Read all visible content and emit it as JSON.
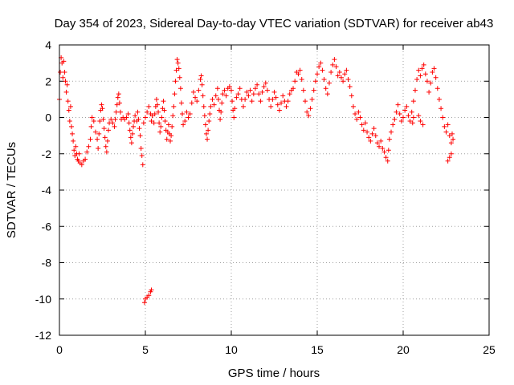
{
  "chart_data": {
    "type": "scatter",
    "title": "Day 354 of 2023, Sidereal Day-to-day VTEC variation (SDTVAR) for receiver ab43",
    "xlabel": "GPS time / hours",
    "ylabel": "SDTVAR / TECUs",
    "xlim": [
      0,
      25
    ],
    "ylim": [
      -12,
      4
    ],
    "xticks": [
      0,
      5,
      10,
      15,
      20,
      25
    ],
    "yticks": [
      4,
      2,
      0,
      -2,
      -4,
      -6,
      -8,
      -10,
      -12
    ],
    "xtick_labels": [
      "0",
      "5",
      "10",
      "15",
      "20",
      "25"
    ],
    "ytick_labels": [
      "4",
      "2",
      "0",
      "-2",
      "-4",
      "-6",
      "-8",
      "-10",
      "-12"
    ],
    "grid": true,
    "marker": "+",
    "series": [
      {
        "name": "SDTVAR",
        "color": "#ff0000",
        "points": [
          [
            0.0,
            1.0
          ],
          [
            0.05,
            2.5
          ],
          [
            0.1,
            3.3
          ],
          [
            0.15,
            3.0
          ],
          [
            0.2,
            2.2
          ],
          [
            0.25,
            3.1
          ],
          [
            0.3,
            2.5
          ],
          [
            0.35,
            2.0
          ],
          [
            0.4,
            1.4
          ],
          [
            0.45,
            1.8
          ],
          [
            0.5,
            0.9
          ],
          [
            0.55,
            0.4
          ],
          [
            0.6,
            -0.2
          ],
          [
            0.65,
            0.6
          ],
          [
            0.7,
            -0.5
          ],
          [
            0.75,
            -0.9
          ],
          [
            0.8,
            -1.3
          ],
          [
            0.85,
            -1.8
          ],
          [
            0.9,
            -2.1
          ],
          [
            0.95,
            -1.6
          ],
          [
            1.0,
            -2.0
          ],
          [
            1.05,
            -2.3
          ],
          [
            1.1,
            -2.4
          ],
          [
            1.15,
            -2.0
          ],
          [
            1.2,
            -2.5
          ],
          [
            1.3,
            -2.6
          ],
          [
            1.4,
            -2.4
          ],
          [
            1.5,
            -2.3
          ],
          [
            1.6,
            -1.9
          ],
          [
            1.7,
            -1.6
          ],
          [
            1.8,
            -1.2
          ],
          [
            1.85,
            -0.5
          ],
          [
            1.9,
            0.0
          ],
          [
            2.0,
            -0.2
          ],
          [
            2.1,
            -0.8
          ],
          [
            2.2,
            -1.2
          ],
          [
            2.25,
            -1.7
          ],
          [
            2.3,
            -0.9
          ],
          [
            2.35,
            -0.2
          ],
          [
            2.4,
            0.4
          ],
          [
            2.45,
            0.7
          ],
          [
            2.5,
            0.5
          ],
          [
            2.55,
            -0.1
          ],
          [
            2.6,
            -0.6
          ],
          [
            2.65,
            -1.1
          ],
          [
            2.7,
            -1.6
          ],
          [
            2.75,
            -1.9
          ],
          [
            2.8,
            -1.3
          ],
          [
            2.85,
            -0.7
          ],
          [
            2.9,
            -0.3
          ],
          [
            3.0,
            -0.1
          ],
          [
            3.1,
            -0.3
          ],
          [
            3.2,
            -0.5
          ],
          [
            3.25,
            -0.1
          ],
          [
            3.3,
            0.3
          ],
          [
            3.35,
            0.7
          ],
          [
            3.4,
            1.1
          ],
          [
            3.45,
            1.3
          ],
          [
            3.5,
            0.8
          ],
          [
            3.55,
            0.3
          ],
          [
            3.6,
            -0.1
          ],
          [
            3.7,
            0.0
          ],
          [
            3.8,
            -0.1
          ],
          [
            3.9,
            0.0
          ],
          [
            4.0,
            0.2
          ],
          [
            4.05,
            -0.3
          ],
          [
            4.1,
            -0.7
          ],
          [
            4.15,
            -1.1
          ],
          [
            4.2,
            -1.4
          ],
          [
            4.25,
            -0.9
          ],
          [
            4.3,
            -0.5
          ],
          [
            4.35,
            -0.2
          ],
          [
            4.4,
            0.1
          ],
          [
            4.5,
            -0.2
          ],
          [
            4.55,
            0.3
          ],
          [
            4.6,
            -0.1
          ],
          [
            4.65,
            -0.6
          ],
          [
            4.7,
            -1.0
          ],
          [
            4.75,
            -1.7
          ],
          [
            4.8,
            -2.1
          ],
          [
            4.85,
            -2.6
          ],
          [
            4.9,
            -0.3
          ],
          [
            5.0,
            0.0
          ],
          [
            5.1,
            0.3
          ],
          [
            5.2,
            0.6
          ],
          [
            5.3,
            0.2
          ],
          [
            5.35,
            -0.2
          ],
          [
            5.4,
            0.1
          ],
          [
            5.5,
            -0.3
          ],
          [
            5.55,
            0.2
          ],
          [
            5.6,
            0.6
          ],
          [
            5.65,
            1.0
          ],
          [
            5.7,
            0.7
          ],
          [
            5.75,
            0.3
          ],
          [
            5.8,
            -0.3
          ],
          [
            5.85,
            -0.8
          ],
          [
            5.9,
            -0.5
          ],
          [
            5.95,
            0.0
          ],
          [
            6.0,
            0.5
          ],
          [
            6.05,
            0.9
          ],
          [
            6.1,
            0.4
          ],
          [
            6.15,
            -0.2
          ],
          [
            6.2,
            -0.7
          ],
          [
            6.25,
            -1.2
          ],
          [
            6.3,
            -0.8
          ],
          [
            6.35,
            -0.4
          ],
          [
            6.4,
            -0.9
          ],
          [
            6.45,
            -1.3
          ],
          [
            6.5,
            -1.0
          ],
          [
            6.55,
            -0.5
          ],
          [
            6.6,
            0.1
          ],
          [
            6.65,
            0.6
          ],
          [
            6.7,
            1.3
          ],
          [
            6.75,
            2.0
          ],
          [
            6.8,
            2.6
          ],
          [
            6.85,
            3.2
          ],
          [
            6.9,
            3.0
          ],
          [
            6.95,
            2.7
          ],
          [
            7.0,
            2.2
          ],
          [
            7.05,
            1.6
          ],
          [
            7.1,
            0.8
          ],
          [
            7.15,
            0.2
          ],
          [
            7.2,
            -0.4
          ],
          [
            7.3,
            -0.2
          ],
          [
            7.4,
            0.3
          ],
          [
            7.5,
            0.0
          ],
          [
            7.6,
            0.2
          ],
          [
            7.7,
            0.8
          ],
          [
            7.8,
            1.4
          ],
          [
            7.9,
            1.1
          ],
          [
            8.0,
            0.9
          ],
          [
            8.1,
            1.5
          ],
          [
            8.2,
            2.1
          ],
          [
            8.25,
            2.3
          ],
          [
            8.3,
            1.8
          ],
          [
            8.35,
            1.2
          ],
          [
            8.4,
            0.6
          ],
          [
            8.45,
            0.1
          ],
          [
            8.5,
            -0.4
          ],
          [
            8.55,
            -0.9
          ],
          [
            8.6,
            -1.2
          ],
          [
            8.65,
            -0.7
          ],
          [
            8.7,
            -0.2
          ],
          [
            8.75,
            0.2
          ],
          [
            8.8,
            0.6
          ],
          [
            8.9,
            1.0
          ],
          [
            9.0,
            0.7
          ],
          [
            9.1,
            1.2
          ],
          [
            9.2,
            1.6
          ],
          [
            9.25,
            1.0
          ],
          [
            9.3,
            0.4
          ],
          [
            9.35,
            -0.1
          ],
          [
            9.4,
            0.3
          ],
          [
            9.45,
            0.8
          ],
          [
            9.5,
            1.3
          ],
          [
            9.6,
            1.5
          ],
          [
            9.7,
            1.2
          ],
          [
            9.8,
            1.6
          ],
          [
            9.9,
            1.7
          ],
          [
            10.0,
            1.5
          ],
          [
            10.05,
            0.9
          ],
          [
            10.1,
            0.4
          ],
          [
            10.15,
            0.0
          ],
          [
            10.2,
            0.5
          ],
          [
            10.3,
            1.1
          ],
          [
            10.4,
            1.3
          ],
          [
            10.5,
            1.6
          ],
          [
            10.6,
            1.0
          ],
          [
            10.7,
            0.6
          ],
          [
            10.8,
            1.0
          ],
          [
            10.9,
            1.4
          ],
          [
            11.0,
            1.2
          ],
          [
            11.1,
            1.5
          ],
          [
            11.2,
            0.9
          ],
          [
            11.3,
            1.3
          ],
          [
            11.4,
            1.6
          ],
          [
            11.5,
            1.8
          ],
          [
            11.6,
            1.3
          ],
          [
            11.7,
            0.9
          ],
          [
            11.8,
            1.4
          ],
          [
            11.9,
            1.7
          ],
          [
            12.0,
            1.9
          ],
          [
            12.1,
            1.5
          ],
          [
            12.2,
            1.0
          ],
          [
            12.3,
            0.6
          ],
          [
            12.4,
            1.0
          ],
          [
            12.5,
            1.4
          ],
          [
            12.6,
            1.1
          ],
          [
            12.7,
            0.7
          ],
          [
            12.8,
            0.4
          ],
          [
            12.9,
            0.8
          ],
          [
            13.0,
            1.2
          ],
          [
            13.1,
            0.9
          ],
          [
            13.2,
            0.6
          ],
          [
            13.3,
            0.9
          ],
          [
            13.4,
            1.3
          ],
          [
            13.5,
            1.5
          ],
          [
            13.6,
            1.6
          ],
          [
            13.7,
            2.0
          ],
          [
            13.8,
            2.5
          ],
          [
            13.9,
            2.4
          ],
          [
            14.0,
            2.6
          ],
          [
            14.1,
            2.1
          ],
          [
            14.2,
            1.5
          ],
          [
            14.3,
            0.9
          ],
          [
            14.4,
            0.3
          ],
          [
            14.5,
            0.1
          ],
          [
            14.6,
            0.5
          ],
          [
            14.7,
            1.0
          ],
          [
            14.8,
            1.5
          ],
          [
            14.9,
            2.0
          ],
          [
            15.0,
            2.4
          ],
          [
            15.1,
            2.8
          ],
          [
            15.2,
            3.0
          ],
          [
            15.3,
            2.6
          ],
          [
            15.4,
            2.1
          ],
          [
            15.5,
            1.6
          ],
          [
            15.6,
            1.3
          ],
          [
            15.7,
            1.9
          ],
          [
            15.8,
            2.5
          ],
          [
            15.9,
            2.9
          ],
          [
            16.0,
            3.2
          ],
          [
            16.1,
            2.8
          ],
          [
            16.2,
            2.3
          ],
          [
            16.3,
            2.5
          ],
          [
            16.4,
            2.2
          ],
          [
            16.5,
            2.0
          ],
          [
            16.6,
            2.4
          ],
          [
            16.7,
            2.6
          ],
          [
            16.8,
            2.1
          ],
          [
            16.9,
            1.7
          ],
          [
            17.0,
            1.2
          ],
          [
            17.1,
            0.6
          ],
          [
            17.2,
            0.2
          ],
          [
            17.3,
            -0.1
          ],
          [
            17.4,
            0.3
          ],
          [
            17.5,
            0.0
          ],
          [
            17.6,
            -0.4
          ],
          [
            17.7,
            -0.7
          ],
          [
            17.8,
            -0.3
          ],
          [
            17.9,
            -0.8
          ],
          [
            18.0,
            -1.1
          ],
          [
            18.1,
            -1.3
          ],
          [
            18.2,
            -0.9
          ],
          [
            18.3,
            -0.6
          ],
          [
            18.4,
            -1.0
          ],
          [
            18.5,
            -1.4
          ],
          [
            18.6,
            -1.6
          ],
          [
            18.7,
            -1.3
          ],
          [
            18.8,
            -1.7
          ],
          [
            18.9,
            -1.9
          ],
          [
            19.0,
            -2.2
          ],
          [
            19.1,
            -2.4
          ],
          [
            19.15,
            -1.8
          ],
          [
            19.2,
            -1.2
          ],
          [
            19.3,
            -0.8
          ],
          [
            19.4,
            -0.4
          ],
          [
            19.5,
            -0.1
          ],
          [
            19.6,
            0.3
          ],
          [
            19.7,
            0.7
          ],
          [
            19.8,
            0.2
          ],
          [
            19.9,
            -0.2
          ],
          [
            20.0,
            0.0
          ],
          [
            20.1,
            0.4
          ],
          [
            20.2,
            0.6
          ],
          [
            20.3,
            0.1
          ],
          [
            20.4,
            -0.2
          ],
          [
            20.5,
            0.3
          ],
          [
            20.6,
            0.9
          ],
          [
            20.7,
            1.5
          ],
          [
            20.8,
            2.1
          ],
          [
            20.9,
            2.6
          ],
          [
            21.0,
            2.3
          ],
          [
            21.1,
            2.7
          ],
          [
            21.2,
            2.9
          ],
          [
            21.3,
            2.4
          ],
          [
            21.4,
            2.0
          ],
          [
            21.5,
            1.4
          ],
          [
            21.6,
            1.9
          ],
          [
            21.7,
            2.5
          ],
          [
            21.8,
            2.7
          ],
          [
            21.9,
            2.2
          ],
          [
            22.0,
            1.6
          ],
          [
            22.1,
            1.0
          ],
          [
            22.2,
            0.5
          ],
          [
            22.3,
            0.0
          ],
          [
            22.4,
            -0.5
          ],
          [
            22.5,
            -0.8
          ],
          [
            22.6,
            -0.4
          ],
          [
            22.7,
            -1.0
          ],
          [
            22.8,
            -1.4
          ],
          [
            22.85,
            -0.9
          ],
          [
            22.9,
            -1.2
          ],
          [
            22.6,
            -2.4
          ],
          [
            22.7,
            -2.2
          ],
          [
            22.8,
            -2.0
          ],
          [
            20.6,
            0.0
          ],
          [
            21.0,
            -0.2
          ],
          [
            21.15,
            -0.4
          ],
          [
            20.55,
            -0.3
          ],
          [
            20.9,
            0.1
          ],
          [
            4.95,
            -10.2
          ],
          [
            5.0,
            -10.0
          ],
          [
            5.1,
            -9.9
          ],
          [
            5.2,
            -9.8
          ],
          [
            5.3,
            -9.6
          ],
          [
            5.35,
            -9.5
          ]
        ]
      }
    ]
  }
}
